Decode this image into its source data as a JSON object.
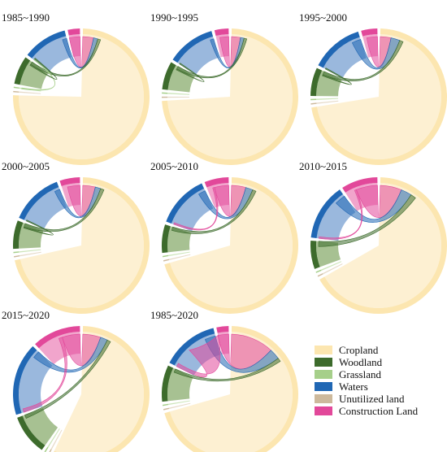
{
  "chart_data": {
    "type": "chord",
    "categories": [
      "Cropland",
      "Woodland",
      "Grassland",
      "Waters",
      "Unutilized land",
      "Construction Land"
    ],
    "colors": {
      "Cropland": "#fce6b0",
      "Woodland": "#3d6b2c",
      "Grassland": "#a6cf8a",
      "Waters": "#2067b4",
      "Unutilized land": "#cdb99c",
      "Construction Land": "#e2489a"
    },
    "inner_colors": {
      "Cropland": "#fdf0d2",
      "Woodland": "#9dba86",
      "Grassland": "#c8e2b2",
      "Waters": "#8fb0d9",
      "Unutilized land": "#e3d6c2",
      "Construction Land": "#f09bc6"
    },
    "panels": [
      {
        "title": "1985~1990",
        "groups": {
          "Construction Land": 3,
          "Waters": 11,
          "Grassland": 0.3,
          "Woodland": 7,
          "Unutilized land": 0.3,
          "Cropland": 78
        },
        "chords": [
          [
            "Cropland",
            "Construction Land",
            3
          ],
          [
            "Cropland",
            "Waters",
            1.2
          ],
          [
            "Cropland",
            "Woodland",
            0.8
          ],
          [
            "Waters",
            "Grassland",
            0.3
          ],
          [
            "Waters",
            "Woodland",
            0.3
          ]
        ]
      },
      {
        "title": "1990~1995",
        "groups": {
          "Construction Land": 3.5,
          "Waters": 12,
          "Grassland": 0.3,
          "Woodland": 7,
          "Unutilized land": 0.3,
          "Cropland": 77
        },
        "chords": [
          [
            "Cropland",
            "Construction Land",
            2.5
          ],
          [
            "Cropland",
            "Waters",
            1
          ],
          [
            "Cropland",
            "Woodland",
            0.8
          ],
          [
            "Waters",
            "Woodland",
            0.3
          ]
        ]
      },
      {
        "title": "1995~2000",
        "groups": {
          "Construction Land": 4,
          "Waters": 13,
          "Grassland": 0.3,
          "Woodland": 7,
          "Unutilized land": 0.3,
          "Cropland": 75
        },
        "chords": [
          [
            "Cropland",
            "Construction Land",
            3
          ],
          [
            "Cropland",
            "Waters",
            2.5
          ],
          [
            "Cropland",
            "Woodland",
            1
          ],
          [
            "Waters",
            "Woodland",
            0.3
          ]
        ]
      },
      {
        "title": "2000~2005",
        "groups": {
          "Construction Land": 5,
          "Waters": 13,
          "Grassland": 0.3,
          "Woodland": 7,
          "Unutilized land": 0.3,
          "Cropland": 74
        },
        "chords": [
          [
            "Cropland",
            "Construction Land",
            3.5
          ],
          [
            "Cropland",
            "Waters",
            1.5
          ],
          [
            "Cropland",
            "Woodland",
            1
          ],
          [
            "Waters",
            "Woodland",
            0.3
          ]
        ]
      },
      {
        "title": "2005~2010",
        "groups": {
          "Construction Land": 6,
          "Waters": 13,
          "Grassland": 0.3,
          "Woodland": 7,
          "Unutilized land": 0.3,
          "Cropland": 73
        },
        "chords": [
          [
            "Cropland",
            "Construction Land",
            4
          ],
          [
            "Cropland",
            "Waters",
            2
          ],
          [
            "Cropland",
            "Woodland",
            1
          ],
          [
            "Waters",
            "Construction Land",
            0.5
          ]
        ]
      },
      {
        "title": "2010~2015",
        "groups": {
          "Construction Land": 9,
          "Waters": 14,
          "Grassland": 0.3,
          "Woodland": 7,
          "Unutilized land": 0.3,
          "Cropland": 69
        },
        "chords": [
          [
            "Cropland",
            "Construction Land",
            6
          ],
          [
            "Cropland",
            "Waters",
            3
          ],
          [
            "Cropland",
            "Woodland",
            1.5
          ],
          [
            "Waters",
            "Construction Land",
            0.5
          ]
        ]
      },
      {
        "title": "2015~2020",
        "groups": {
          "Construction Land": 12,
          "Waters": 18,
          "Grassland": 0.3,
          "Woodland": 10,
          "Unutilized land": 0.3,
          "Cropland": 59
        },
        "chords": [
          [
            "Cropland",
            "Construction Land",
            5
          ],
          [
            "Cropland",
            "Waters",
            2
          ],
          [
            "Cropland",
            "Woodland",
            1
          ],
          [
            "Waters",
            "Construction Land",
            1
          ]
        ]
      },
      {
        "title": "1985~2020",
        "groups": {
          "Construction Land": 3,
          "Waters": 14,
          "Grassland": 0.3,
          "Woodland": 9,
          "Unutilized land": 0.3,
          "Cropland": 73
        },
        "chords": [
          [
            "Cropland",
            "Construction Land",
            12
          ],
          [
            "Cropland",
            "Waters",
            3
          ],
          [
            "Cropland",
            "Woodland",
            1
          ],
          [
            "Waters",
            "Construction Land",
            1
          ]
        ]
      }
    ],
    "legend_position": "bottom-right"
  },
  "legend": {
    "items": [
      {
        "label": "Cropland",
        "color": "#fce6b0"
      },
      {
        "label": "Woodland",
        "color": "#3d6b2c"
      },
      {
        "label": "Grassland",
        "color": "#a6cf8a"
      },
      {
        "label": "Waters",
        "color": "#2067b4"
      },
      {
        "label": "Unutilized land",
        "color": "#cdb99c"
      },
      {
        "label": "Construction Land",
        "color": "#e2489a"
      }
    ]
  }
}
